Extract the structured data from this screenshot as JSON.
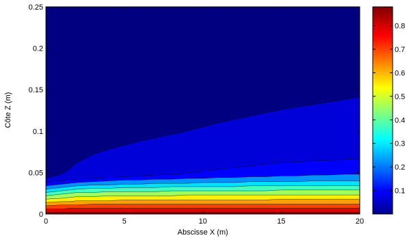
{
  "chart_data": {
    "type": "contourf",
    "xlabel": "Abscisse X (m)",
    "ylabel": "Côte Z (m)",
    "xlim": [
      0,
      20
    ],
    "ylim": [
      0,
      0.25
    ],
    "xticks": [
      {
        "value": 0,
        "label": "0"
      },
      {
        "value": 5,
        "label": "5"
      },
      {
        "value": 10,
        "label": "10"
      },
      {
        "value": 15,
        "label": "15"
      },
      {
        "value": 20,
        "label": "20"
      }
    ],
    "yticks": [
      {
        "value": 0,
        "label": "0"
      },
      {
        "value": 0.05,
        "label": "0.05"
      },
      {
        "value": 0.1,
        "label": "0.1"
      },
      {
        "value": 0.15,
        "label": "0.15"
      },
      {
        "value": 0.2,
        "label": "0.2"
      },
      {
        "value": 0.25,
        "label": "0.25"
      }
    ],
    "colormap": "jet",
    "clim": [
      0,
      0.88
    ],
    "colorbar_ticks": [
      {
        "value": 0.1,
        "label": "0.1"
      },
      {
        "value": 0.2,
        "label": "0.2"
      },
      {
        "value": 0.3,
        "label": "0.3"
      },
      {
        "value": 0.4,
        "label": "0.4"
      },
      {
        "value": 0.5,
        "label": "0.5"
      },
      {
        "value": 0.6,
        "label": "0.6"
      },
      {
        "value": 0.7,
        "label": "0.7"
      },
      {
        "value": 0.8,
        "label": "0.8"
      }
    ],
    "x": [
      0,
      1,
      1.5,
      2,
      3,
      4,
      5,
      6,
      7,
      8,
      9,
      10,
      11,
      12,
      13,
      14,
      15,
      16,
      17,
      18,
      19,
      20
    ],
    "levels": [
      {
        "fill": "#000080",
        "boundary": [
          0.25,
          0.25,
          0.25,
          0.25,
          0.25,
          0.25,
          0.25,
          0.25,
          0.25,
          0.25,
          0.25,
          0.25,
          0.25,
          0.25,
          0.25,
          0.25,
          0.25,
          0.25,
          0.25,
          0.25,
          0.25,
          0.25
        ]
      },
      {
        "fill": "#0000d8",
        "boundary": [
          0.043,
          0.048,
          0.054,
          0.062,
          0.072,
          0.078,
          0.083,
          0.088,
          0.092,
          0.096,
          0.1,
          0.105,
          0.11,
          0.114,
          0.118,
          0.122,
          0.126,
          0.129,
          0.132,
          0.135,
          0.138,
          0.141
        ]
      },
      {
        "fill": "#0000ff",
        "boundary": [
          0.038,
          0.04,
          0.041,
          0.042,
          0.043,
          0.044,
          0.045,
          0.046,
          0.047,
          0.048,
          0.049,
          0.052,
          0.054,
          0.056,
          0.058,
          0.06,
          0.062,
          0.063,
          0.064,
          0.065,
          0.066,
          0.067
        ]
      },
      {
        "fill": "#0090ff",
        "boundary": [
          0.034,
          0.036,
          0.037,
          0.038,
          0.039,
          0.04,
          0.041,
          0.041,
          0.042,
          0.042,
          0.043,
          0.043,
          0.044,
          0.044,
          0.045,
          0.045,
          0.046,
          0.046,
          0.047,
          0.047,
          0.048,
          0.048
        ]
      },
      {
        "fill": "#00e0ff",
        "boundary": [
          0.03,
          0.032,
          0.033,
          0.034,
          0.035,
          0.035,
          0.036,
          0.036,
          0.037,
          0.037,
          0.037,
          0.038,
          0.038,
          0.038,
          0.039,
          0.039,
          0.039,
          0.039,
          0.04,
          0.04,
          0.04,
          0.04
        ]
      },
      {
        "fill": "#40ffc0",
        "boundary": [
          0.026,
          0.028,
          0.029,
          0.03,
          0.031,
          0.031,
          0.032,
          0.032,
          0.032,
          0.033,
          0.033,
          0.033,
          0.033,
          0.033,
          0.034,
          0.034,
          0.034,
          0.034,
          0.034,
          0.034,
          0.034,
          0.034
        ]
      },
      {
        "fill": "#9fff60",
        "boundary": [
          0.022,
          0.024,
          0.025,
          0.026,
          0.026,
          0.027,
          0.027,
          0.027,
          0.027,
          0.028,
          0.028,
          0.028,
          0.028,
          0.028,
          0.028,
          0.028,
          0.029,
          0.029,
          0.029,
          0.029,
          0.029,
          0.029
        ]
      },
      {
        "fill": "#ffef00",
        "boundary": [
          0.018,
          0.019,
          0.02,
          0.021,
          0.021,
          0.022,
          0.022,
          0.022,
          0.022,
          0.022,
          0.023,
          0.023,
          0.023,
          0.023,
          0.023,
          0.023,
          0.023,
          0.023,
          0.023,
          0.023,
          0.023,
          0.023
        ]
      },
      {
        "fill": "#ffa000",
        "boundary": [
          0.014,
          0.015,
          0.015,
          0.016,
          0.016,
          0.016,
          0.017,
          0.017,
          0.017,
          0.017,
          0.017,
          0.017,
          0.017,
          0.017,
          0.017,
          0.017,
          0.018,
          0.018,
          0.018,
          0.018,
          0.018,
          0.018
        ]
      },
      {
        "fill": "#ff4000",
        "boundary": [
          0.01,
          0.011,
          0.011,
          0.011,
          0.012,
          0.012,
          0.012,
          0.012,
          0.012,
          0.012,
          0.012,
          0.012,
          0.012,
          0.012,
          0.012,
          0.012,
          0.012,
          0.012,
          0.012,
          0.012,
          0.012,
          0.012
        ]
      },
      {
        "fill": "#e00000",
        "boundary": [
          0.006,
          0.006,
          0.007,
          0.007,
          0.007,
          0.007,
          0.007,
          0.007,
          0.007,
          0.007,
          0.007,
          0.007,
          0.007,
          0.007,
          0.007,
          0.007,
          0.007,
          0.007,
          0.007,
          0.007,
          0.007,
          0.007
        ]
      },
      {
        "fill": "#900000",
        "boundary": [
          0.002,
          0.002,
          0.002,
          0.002,
          0.002,
          0.002,
          0.002,
          0.002,
          0.002,
          0.002,
          0.002,
          0.002,
          0.002,
          0.002,
          0.002,
          0.002,
          0.002,
          0.002,
          0.002,
          0.002,
          0.002,
          0.002
        ]
      }
    ]
  }
}
